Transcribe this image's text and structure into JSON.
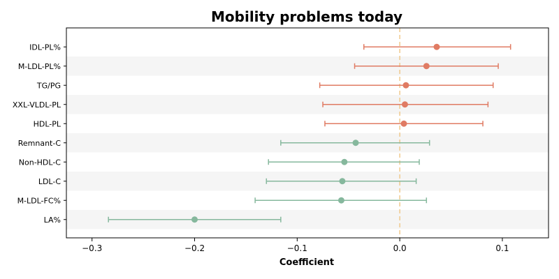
{
  "chart_data": {
    "type": "forest",
    "title": "Mobility problems today",
    "xlabel": "Coefficient",
    "xlim": [
      -0.325,
      0.145
    ],
    "xticks": [
      -0.3,
      -0.2,
      -0.1,
      0.0,
      0.1
    ],
    "xtick_labels": [
      "−0.3",
      "−0.2",
      "−0.1",
      "0.0",
      "0.1"
    ],
    "reference_line": 0.0,
    "colors": {
      "positive": "#e07b63",
      "negative": "#86b89d",
      "reference": "#f0c98c",
      "band": "#f5f5f5"
    },
    "rows": [
      {
        "label": "IDL-PL%",
        "estimate": 0.036,
        "ci_low": -0.035,
        "ci_high": 0.108
      },
      {
        "label": "M-LDL-PL%",
        "estimate": 0.026,
        "ci_low": -0.044,
        "ci_high": 0.096
      },
      {
        "label": "TG/PG",
        "estimate": 0.006,
        "ci_low": -0.078,
        "ci_high": 0.091
      },
      {
        "label": "XXL-VLDL-PL",
        "estimate": 0.005,
        "ci_low": -0.075,
        "ci_high": 0.086
      },
      {
        "label": "HDL-PL",
        "estimate": 0.004,
        "ci_low": -0.073,
        "ci_high": 0.081
      },
      {
        "label": "Remnant-C",
        "estimate": -0.043,
        "ci_low": -0.116,
        "ci_high": 0.029
      },
      {
        "label": "Non-HDL-C",
        "estimate": -0.054,
        "ci_low": -0.128,
        "ci_high": 0.019
      },
      {
        "label": "LDL-C",
        "estimate": -0.056,
        "ci_low": -0.13,
        "ci_high": 0.016
      },
      {
        "label": "M-LDL-FC%",
        "estimate": -0.057,
        "ci_low": -0.141,
        "ci_high": 0.026
      },
      {
        "label": "LA%",
        "estimate": -0.2,
        "ci_low": -0.284,
        "ci_high": -0.116
      }
    ]
  }
}
